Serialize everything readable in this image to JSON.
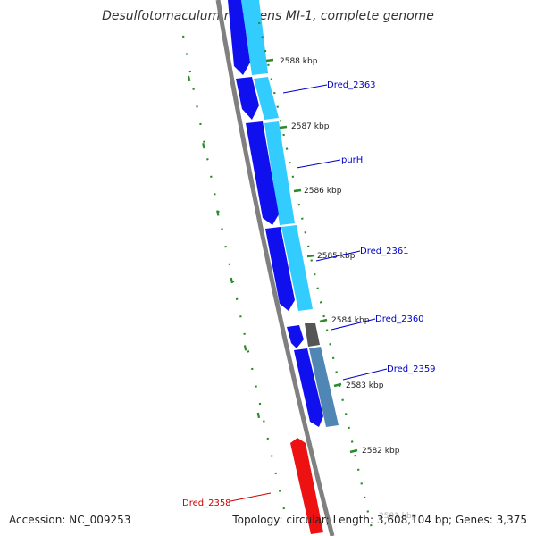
{
  "title": "Desulfotomaculum reducens MI-1, complete genome",
  "footer": {
    "accession": "Accession: NC_009253",
    "summary": "Topology: circular; Length: 3,608,104 bp; Genes: 3,375"
  },
  "colors": {
    "backbone": "#808080",
    "forward_cds": "#1010ee",
    "reverse_cds": "#ee1111",
    "feature_light_blue": "#33ccff",
    "feature_steel": "#4f86b3",
    "feature_gray": "#555555",
    "tick_marks": "#2a8a2a",
    "label_blue": "#0000cc",
    "label_red": "#cc0000"
  },
  "ticks": [
    "2588 kbp",
    "2587 kbp",
    "2586 kbp",
    "2585 kbp",
    "2584 kbp",
    "2583 kbp",
    "2582 kbp",
    "2581 kbp"
  ],
  "gene_labels": [
    {
      "name": "Dred_2363",
      "strand": "forward"
    },
    {
      "name": "purH",
      "strand": "forward"
    },
    {
      "name": "Dred_2361",
      "strand": "forward"
    },
    {
      "name": "Dred_2360",
      "strand": "forward"
    },
    {
      "name": "Dred_2359",
      "strand": "forward"
    },
    {
      "name": "Dred_2358",
      "strand": "reverse"
    }
  ]
}
